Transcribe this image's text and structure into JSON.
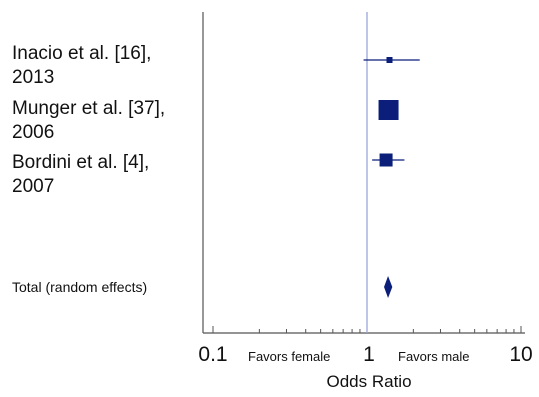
{
  "chart_data": {
    "type": "forest",
    "xlabel": "Odds Ratio",
    "x_scale": "log",
    "xlim": [
      0.1,
      10
    ],
    "x_ticks": [
      "0.1",
      "1",
      "10"
    ],
    "reference_line": 1,
    "favor_left_label": "Favors female",
    "favor_right_label": "Favors male",
    "studies": [
      {
        "label_line1": "Inacio et al. [16],",
        "label_line2": "2013",
        "or": 1.4,
        "ci_low": 0.95,
        "ci_high": 2.2,
        "weight": 1
      },
      {
        "label_line1": "Munger et al. [37],",
        "label_line2": "2006",
        "or": 1.38,
        "ci_low": 1.27,
        "ci_high": 1.5,
        "weight": 3
      },
      {
        "label_line1": "Bordini et al. [4],",
        "label_line2": "2007",
        "or": 1.33,
        "ci_low": 1.08,
        "ci_high": 1.75,
        "weight": 2
      }
    ],
    "total": {
      "label": "Total (random effects)",
      "or": 1.37,
      "ci_low": 1.29,
      "ci_high": 1.46
    },
    "marker_color": "#0b1f7a",
    "ref_line_color": "#9aa6d8"
  }
}
